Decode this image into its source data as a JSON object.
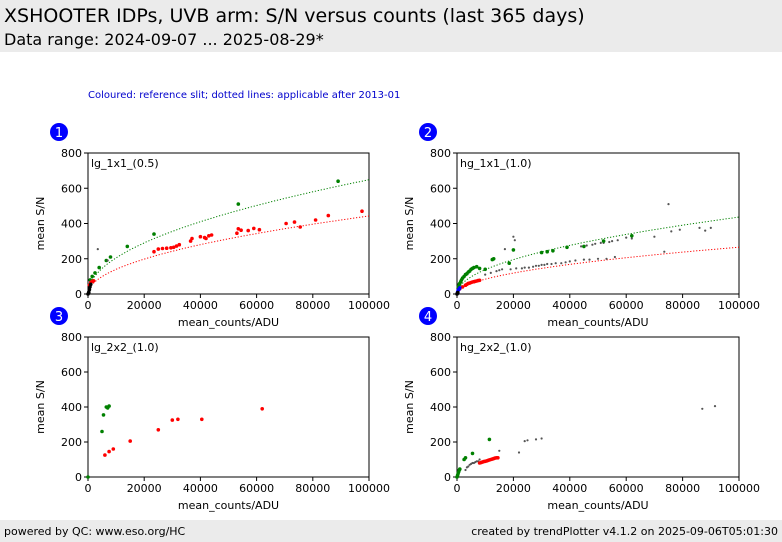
{
  "header": {
    "title": "XSHOOTER IDPs, UVB arm: S/N versus counts (last 365 days)",
    "subtitle": "Data range: 2024-09-07 ... 2025-08-29*"
  },
  "note": "Coloured: reference slit; dotted lines: applicable after 2013-01",
  "footer": {
    "left": "powered by QC: www.eso.org/HC",
    "right": "created by trendPlotter v4.1.2 on 2025-09-06T05:01:30"
  },
  "colors": {
    "badge": "#0000ff",
    "green": "#008000",
    "red": "#ff0000",
    "grey": "#555555",
    "header_bg": "#ebebeb"
  },
  "chart_data": [
    {
      "type": "scatter",
      "badge": "1",
      "label": "lg_1x1_(0.5)",
      "xlabel": "mean_counts/ADU",
      "ylabel": "mean S/N",
      "xlim": [
        0,
        100000
      ],
      "ylim": [
        0,
        800
      ],
      "xticks": [
        0,
        20000,
        40000,
        60000,
        80000,
        100000
      ],
      "yticks": [
        0,
        200,
        400,
        600,
        800
      ],
      "fits": [
        {
          "color": "green",
          "a": 2.05,
          "b": 0.5
        },
        {
          "color": "red",
          "a": 1.4,
          "b": 0.5
        }
      ],
      "series": [
        {
          "color": "green",
          "points": [
            [
              800,
              80
            ],
            [
              1500,
              100
            ],
            [
              2500,
              120
            ],
            [
              4000,
              150
            ],
            [
              6500,
              190
            ],
            [
              8000,
              210
            ],
            [
              14000,
              270
            ],
            [
              23500,
              340
            ],
            [
              53500,
              510
            ],
            [
              89000,
              640
            ]
          ]
        },
        {
          "color": "grey",
          "points": [
            [
              3500,
              255
            ],
            [
              7000,
              190
            ]
          ]
        },
        {
          "color": "red",
          "points": [
            [
              500,
              50
            ],
            [
              1000,
              65
            ],
            [
              1500,
              72
            ],
            [
              2000,
              75
            ],
            [
              23500,
              240
            ],
            [
              25000,
              255
            ],
            [
              26500,
              258
            ],
            [
              28000,
              260
            ],
            [
              29500,
              262
            ],
            [
              30500,
              265
            ],
            [
              31500,
              272
            ],
            [
              32500,
              280
            ],
            [
              36500,
              300
            ],
            [
              37000,
              315
            ],
            [
              40000,
              325
            ],
            [
              41500,
              320
            ],
            [
              42000,
              315
            ],
            [
              43000,
              330
            ],
            [
              44000,
              335
            ],
            [
              53000,
              345
            ],
            [
              53500,
              370
            ],
            [
              54500,
              362
            ],
            [
              57000,
              360
            ],
            [
              59000,
              372
            ],
            [
              61000,
              365
            ],
            [
              70500,
              400
            ],
            [
              73500,
              408
            ],
            [
              75500,
              380
            ],
            [
              81000,
              420
            ],
            [
              85500,
              445
            ],
            [
              97500,
              470
            ]
          ]
        },
        {
          "color": "black",
          "points": [
            [
              0,
              0
            ],
            [
              200,
              5
            ],
            [
              300,
              10
            ],
            [
              500,
              25
            ],
            [
              700,
              40
            ],
            [
              1000,
              55
            ]
          ]
        }
      ]
    },
    {
      "type": "scatter",
      "badge": "2",
      "label": "hg_1x1_(1.0)",
      "xlabel": "mean_counts/ADU",
      "ylabel": "mean S/N",
      "xlim": [
        0,
        100000
      ],
      "ylim": [
        0,
        800
      ],
      "xticks": [
        0,
        20000,
        40000,
        60000,
        80000,
        100000
      ],
      "yticks": [
        0,
        200,
        400,
        600,
        800
      ],
      "fits": [
        {
          "color": "green",
          "a": 1.38,
          "b": 0.5
        },
        {
          "color": "red",
          "a": 0.84,
          "b": 0.5
        }
      ],
      "series": [
        {
          "color": "grey",
          "points": [
            [
              10000,
              110
            ],
            [
              12000,
              120
            ],
            [
              14000,
              130
            ],
            [
              15000,
              135
            ],
            [
              16000,
              140
            ],
            [
              17000,
              255
            ],
            [
              19000,
              140
            ],
            [
              20000,
              325
            ],
            [
              20500,
              305
            ],
            [
              21000,
              145
            ],
            [
              23000,
              145
            ],
            [
              24000,
              150
            ],
            [
              25500,
              150
            ],
            [
              27000,
              155
            ],
            [
              28000,
              160
            ],
            [
              29000,
              160
            ],
            [
              30000,
              165
            ],
            [
              31000,
              165
            ],
            [
              32000,
              170
            ],
            [
              33500,
              170
            ],
            [
              35000,
              175
            ],
            [
              37000,
              175
            ],
            [
              38500,
              180
            ],
            [
              40000,
              185
            ],
            [
              42000,
              190
            ],
            [
              44000,
              270
            ],
            [
              45000,
              195
            ],
            [
              46000,
              275
            ],
            [
              47000,
              195
            ],
            [
              48000,
              280
            ],
            [
              49000,
              285
            ],
            [
              50000,
              200
            ],
            [
              51000,
              290
            ],
            [
              52000,
              290
            ],
            [
              53000,
              200
            ],
            [
              54000,
              295
            ],
            [
              55000,
              300
            ],
            [
              56000,
              210
            ],
            [
              57000,
              305
            ],
            [
              60000,
              320
            ],
            [
              62000,
              315
            ],
            [
              70000,
              325
            ],
            [
              73500,
              240
            ],
            [
              75000,
              510
            ],
            [
              76000,
              355
            ],
            [
              79000,
              365
            ],
            [
              86000,
              375
            ],
            [
              88000,
              360
            ],
            [
              90000,
              375
            ]
          ]
        },
        {
          "color": "green",
          "points": [
            [
              500,
              40
            ],
            [
              800,
              55
            ],
            [
              1000,
              60
            ],
            [
              1300,
              70
            ],
            [
              1600,
              80
            ],
            [
              2000,
              90
            ],
            [
              2500,
              100
            ],
            [
              3000,
              110
            ],
            [
              3500,
              115
            ],
            [
              4000,
              125
            ],
            [
              4500,
              130
            ],
            [
              5000,
              140
            ],
            [
              5500,
              145
            ],
            [
              6000,
              150
            ],
            [
              7000,
              155
            ],
            [
              8000,
              145
            ],
            [
              10000,
              140
            ],
            [
              12500,
              195
            ],
            [
              13000,
              200
            ],
            [
              18500,
              175
            ],
            [
              20000,
              250
            ],
            [
              30000,
              235
            ],
            [
              32000,
              240
            ],
            [
              34000,
              245
            ],
            [
              39000,
              265
            ],
            [
              45000,
              270
            ],
            [
              52000,
              300
            ],
            [
              62000,
              330
            ]
          ]
        },
        {
          "color": "red",
          "points": [
            [
              1000,
              30
            ],
            [
              2000,
              40
            ],
            [
              3000,
              50
            ],
            [
              3500,
              55
            ],
            [
              4000,
              60
            ],
            [
              4500,
              62
            ],
            [
              5000,
              65
            ],
            [
              5500,
              68
            ],
            [
              6000,
              70
            ],
            [
              6500,
              72
            ],
            [
              7000,
              74
            ],
            [
              7500,
              76
            ],
            [
              8000,
              78
            ]
          ]
        },
        {
          "color": "blue",
          "points": [
            [
              200,
              10
            ],
            [
              400,
              20
            ],
            [
              600,
              25
            ],
            [
              800,
              30
            ],
            [
              1000,
              35
            ]
          ]
        },
        {
          "color": "black",
          "points": [
            [
              0,
              0
            ],
            [
              100,
              3
            ],
            [
              200,
              6
            ],
            [
              300,
              8
            ]
          ]
        }
      ]
    },
    {
      "type": "scatter",
      "badge": "3",
      "label": "lg_2x2_(1.0)",
      "xlabel": "mean_counts/ADU",
      "ylabel": "mean S/N",
      "xlim": [
        0,
        100000
      ],
      "ylim": [
        0,
        800
      ],
      "xticks": [
        0,
        20000,
        40000,
        60000,
        80000,
        100000
      ],
      "yticks": [
        0,
        200,
        400,
        600,
        800
      ],
      "fits": [],
      "series": [
        {
          "color": "green",
          "points": [
            [
              0,
              0
            ],
            [
              5000,
              260
            ],
            [
              5500,
              355
            ],
            [
              6500,
              400
            ],
            [
              7000,
              395
            ],
            [
              7500,
              405
            ]
          ]
        },
        {
          "color": "red",
          "points": [
            [
              6000,
              125
            ],
            [
              7500,
              145
            ],
            [
              9000,
              160
            ],
            [
              15000,
              205
            ],
            [
              25000,
              270
            ],
            [
              30000,
              325
            ],
            [
              32000,
              330
            ],
            [
              40500,
              330
            ],
            [
              62000,
              390
            ]
          ]
        }
      ]
    },
    {
      "type": "scatter",
      "badge": "4",
      "label": "hg_2x2_(1.0)",
      "xlabel": "mean_counts/ADU",
      "ylabel": "mean S/N",
      "xlim": [
        0,
        100000
      ],
      "ylim": [
        0,
        800
      ],
      "xticks": [
        0,
        20000,
        40000,
        60000,
        80000,
        100000
      ],
      "yticks": [
        0,
        200,
        400,
        600,
        800
      ],
      "fits": [],
      "series": [
        {
          "color": "grey",
          "points": [
            [
              3000,
              40
            ],
            [
              3500,
              55
            ],
            [
              4000,
              60
            ],
            [
              4500,
              70
            ],
            [
              5000,
              75
            ],
            [
              5500,
              80
            ],
            [
              6000,
              80
            ],
            [
              6500,
              85
            ],
            [
              7000,
              90
            ],
            [
              7500,
              90
            ],
            [
              8000,
              100
            ],
            [
              15000,
              150
            ],
            [
              22000,
              140
            ],
            [
              24000,
              205
            ],
            [
              25000,
              210
            ],
            [
              28000,
              215
            ],
            [
              30000,
              220
            ],
            [
              87000,
              390
            ],
            [
              91500,
              405
            ]
          ]
        },
        {
          "color": "green",
          "points": [
            [
              0,
              0
            ],
            [
              200,
              10
            ],
            [
              400,
              20
            ],
            [
              600,
              30
            ],
            [
              800,
              40
            ],
            [
              1000,
              45
            ],
            [
              2500,
              100
            ],
            [
              3000,
              110
            ],
            [
              5500,
              135
            ],
            [
              11500,
              215
            ]
          ]
        },
        {
          "color": "red",
          "points": [
            [
              8000,
              80
            ],
            [
              8500,
              82
            ],
            [
              9000,
              85
            ],
            [
              9500,
              88
            ],
            [
              10000,
              90
            ],
            [
              10500,
              92
            ],
            [
              11000,
              95
            ],
            [
              11500,
              98
            ],
            [
              12000,
              100
            ],
            [
              12500,
              102
            ],
            [
              13000,
              105
            ],
            [
              13500,
              108
            ],
            [
              14000,
              110
            ],
            [
              14500,
              110
            ]
          ]
        }
      ]
    }
  ]
}
